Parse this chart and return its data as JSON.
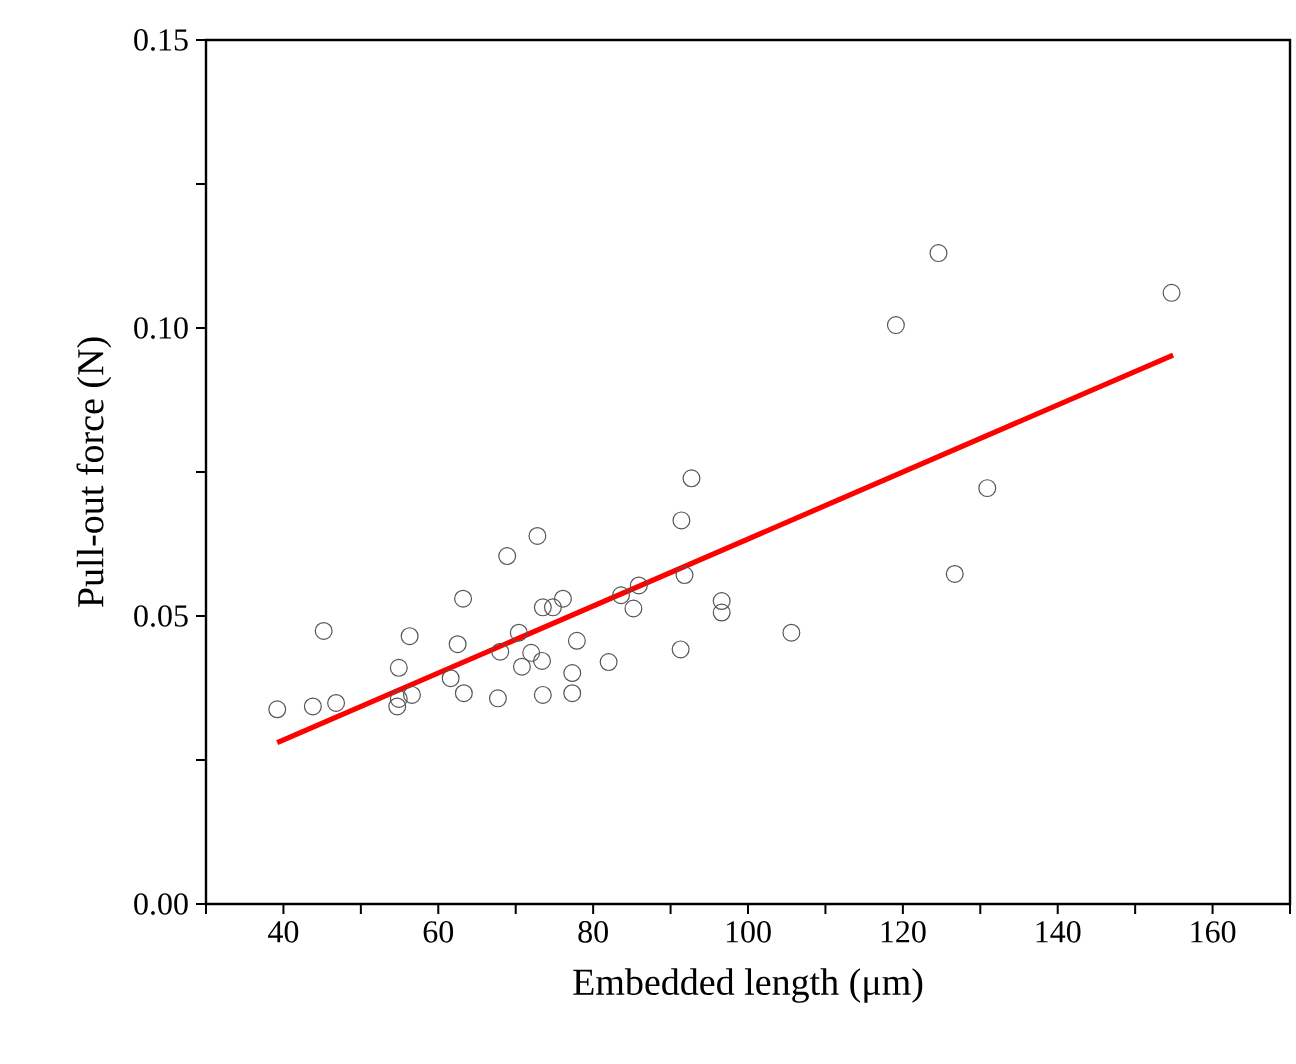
{
  "chart_data": {
    "type": "scatter",
    "xlabel": "Embedded length (μm)",
    "ylabel": "Pull-out force (N)",
    "xlim": [
      30,
      170
    ],
    "ylim": [
      0,
      0.15
    ],
    "xticks": [
      {
        "value": 30,
        "label": null
      },
      40,
      {
        "value": 50,
        "label": null
      },
      60,
      {
        "value": 70,
        "label": null
      },
      80,
      {
        "value": 90,
        "label": null
      },
      100,
      {
        "value": 110,
        "label": null
      },
      120,
      {
        "value": 130,
        "label": null
      },
      140,
      {
        "value": 150,
        "label": null
      },
      160,
      {
        "value": 170,
        "label": null
      }
    ],
    "yticks": [
      {
        "value": 0,
        "label": "0.00"
      },
      {
        "value": 0.025,
        "label": null
      },
      {
        "value": 0.05,
        "label": "0.05"
      },
      {
        "value": 0.075,
        "label": null
      },
      {
        "value": 0.1,
        "label": "0.10"
      },
      {
        "value": 0.125,
        "label": null
      },
      {
        "value": 0.15,
        "label": "0.15"
      }
    ],
    "series": [
      {
        "marker": "circle",
        "color": "#555555",
        "x": [
          39.2,
          43.8,
          46.8,
          45.2,
          54.9,
          54.7,
          54.9,
          56.6,
          56.3,
          61.6,
          62.5,
          63.2,
          63.3,
          67.7,
          68.0,
          68.9,
          70.4,
          70.8,
          72.0,
          72.8,
          73.4,
          73.5,
          73.5,
          74.8,
          76.1,
          77.9,
          77.3,
          77.3,
          82.0,
          83.6,
          85.9,
          85.2,
          91.4,
          91.8,
          91.3,
          92.7,
          96.6,
          96.6,
          105.6,
          119.1,
          124.6,
          126.7,
          130.9,
          154.7
        ],
        "values": [
          0.0338,
          0.0343,
          0.0349,
          0.0474,
          0.041,
          0.0343,
          0.0356,
          0.0363,
          0.0465,
          0.0392,
          0.0451,
          0.053,
          0.0366,
          0.0357,
          0.0438,
          0.0604,
          0.0471,
          0.0412,
          0.0436,
          0.0639,
          0.0422,
          0.0363,
          0.0515,
          0.0515,
          0.053,
          0.0457,
          0.0401,
          0.0366,
          0.042,
          0.0536,
          0.0553,
          0.0513,
          0.0666,
          0.0571,
          0.0442,
          0.0739,
          0.0526,
          0.0506,
          0.0471,
          0.1005,
          0.113,
          0.0573,
          0.0722,
          0.1061
        ]
      },
      {
        "type": "line",
        "marker": "none",
        "line_style": "solid",
        "color": "#ff0000",
        "x": [
          39.2,
          154.9
        ],
        "values": [
          0.028,
          0.0953
        ]
      }
    ]
  }
}
